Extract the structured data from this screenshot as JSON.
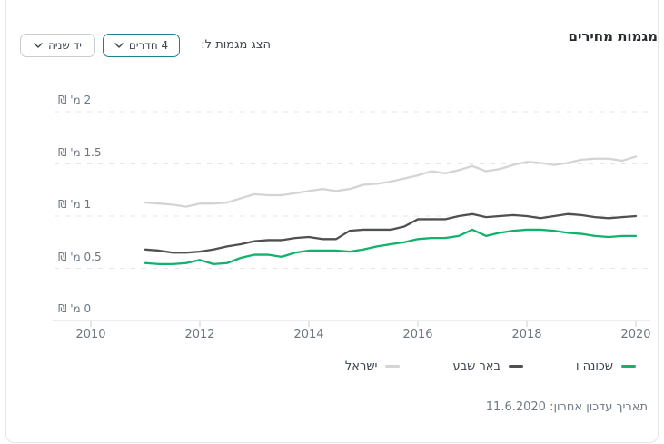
{
  "header": {
    "title": "מגמות מחירים",
    "show_trends_label": "הצג מגמות ל:",
    "rooms_dropdown": {
      "value": "4 חדרים"
    },
    "condition_dropdown": {
      "value": "יד שניה"
    }
  },
  "footer": {
    "last_update": "תאריך עדכון אחרון: 11.6.2020"
  },
  "chart_data": {
    "type": "line",
    "title": "מגמות מחירים",
    "xlabel": "",
    "ylabel": "מ' ₪",
    "xlim": [
      2010,
      2020.3
    ],
    "ylim": [
      0,
      2
    ],
    "grid": "horizontal-dashed",
    "legend_position": "bottom-right",
    "x_ticks": [
      {
        "year": 2010,
        "label": "2010"
      },
      {
        "year": 2012,
        "label": "2012"
      },
      {
        "year": 2014,
        "label": "2014"
      },
      {
        "year": 2016,
        "label": "2016"
      },
      {
        "year": 2018,
        "label": "2018"
      },
      {
        "year": 2020,
        "label": "2020"
      }
    ],
    "y_ticks": [
      {
        "value": 0,
        "label": "0 מ' ₪"
      },
      {
        "value": 0.5,
        "label": "0.5 מ' ₪"
      },
      {
        "value": 1,
        "label": "1 מ' ₪"
      },
      {
        "value": 1.5,
        "label": "1.5 מ' ₪"
      },
      {
        "value": 2,
        "label": "2 מ' ₪"
      }
    ],
    "x": [
      2011,
      2011.25,
      2011.5,
      2011.75,
      2012,
      2012.25,
      2012.5,
      2012.75,
      2013,
      2013.25,
      2013.5,
      2013.75,
      2014,
      2014.25,
      2014.5,
      2014.75,
      2015,
      2015.25,
      2015.5,
      2015.75,
      2016,
      2016.25,
      2016.5,
      2016.75,
      2017,
      2017.25,
      2017.5,
      2017.75,
      2018,
      2018.25,
      2018.5,
      2018.75,
      2019,
      2019.25,
      2019.5,
      2019.75,
      2020
    ],
    "series": [
      {
        "name": "שכונה ו",
        "color": "#10b26c",
        "unit": "מיליון ₪",
        "values": [
          0.55,
          0.54,
          0.54,
          0.55,
          0.58,
          0.54,
          0.55,
          0.6,
          0.63,
          0.63,
          0.61,
          0.65,
          0.67,
          0.67,
          0.67,
          0.66,
          0.68,
          0.71,
          0.73,
          0.75,
          0.78,
          0.79,
          0.79,
          0.81,
          0.87,
          0.81,
          0.84,
          0.86,
          0.87,
          0.87,
          0.86,
          0.84,
          0.83,
          0.81,
          0.8,
          0.81,
          0.81
        ]
      },
      {
        "name": "באר שבע",
        "color": "#4e5052",
        "unit": "מיליון ₪",
        "values": [
          0.68,
          0.67,
          0.65,
          0.65,
          0.66,
          0.68,
          0.71,
          0.73,
          0.76,
          0.77,
          0.77,
          0.79,
          0.8,
          0.78,
          0.78,
          0.86,
          0.87,
          0.87,
          0.87,
          0.9,
          0.97,
          0.97,
          0.97,
          1.0,
          1.02,
          0.99,
          1.0,
          1.01,
          1.0,
          0.98,
          1.0,
          1.02,
          1.01,
          0.99,
          0.98,
          0.99,
          1.0
        ]
      },
      {
        "name": "ישראל",
        "color": "#d3d4d6",
        "unit": "מיליון ₪",
        "values": [
          1.13,
          1.12,
          1.11,
          1.09,
          1.12,
          1.12,
          1.13,
          1.17,
          1.21,
          1.2,
          1.2,
          1.22,
          1.24,
          1.26,
          1.24,
          1.26,
          1.3,
          1.31,
          1.33,
          1.36,
          1.39,
          1.43,
          1.41,
          1.44,
          1.48,
          1.43,
          1.45,
          1.49,
          1.52,
          1.51,
          1.49,
          1.51,
          1.54,
          1.55,
          1.55,
          1.53,
          1.57
        ]
      }
    ]
  }
}
